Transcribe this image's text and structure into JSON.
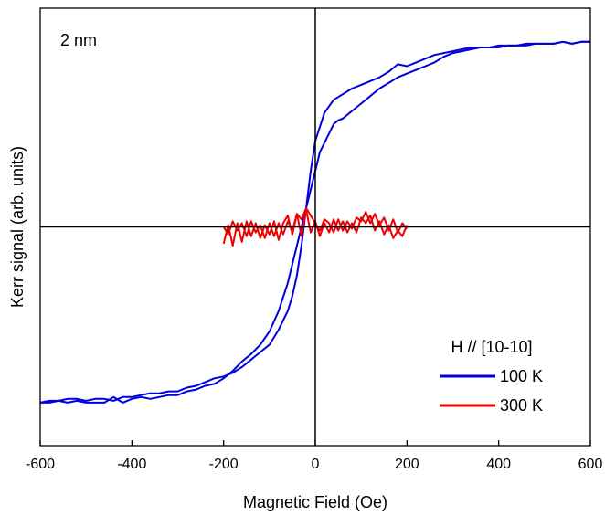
{
  "chart_data": {
    "type": "line",
    "title": "",
    "xlabel": "Magnetic Field (Oe)",
    "ylabel": "Kerr signal (arb. units)",
    "xlim": [
      -600,
      600
    ],
    "ylim": [
      -1.17,
      1.17
    ],
    "x_ticks": [
      "-600",
      "-400",
      "-200",
      "0",
      "200",
      "400",
      "600"
    ],
    "y_ticks_labeled": false,
    "grid": false,
    "zero_lines": true,
    "annotation": "2 nm",
    "legend": {
      "title": "H // [10-10]",
      "placement": "bottom-right"
    },
    "series": [
      {
        "name": "100 K",
        "color": "#0000dd",
        "branches": [
          {
            "x": [
              600,
              580,
              560,
              540,
              520,
              500,
              480,
              460,
              440,
              420,
              400,
              380,
              360,
              340,
              320,
              300,
              280,
              260,
              240,
              220,
              200,
              180,
              160,
              140,
              120,
              100,
              80,
              60,
              40,
              20,
              0,
              -10,
              -20,
              -30,
              -40,
              -50,
              -60,
              -80,
              -100,
              -120,
              -140,
              -160,
              -180,
              -200,
              -220,
              -240,
              -260,
              -280,
              -300,
              -320,
              -340,
              -360,
              -380,
              -400,
              -420,
              -440,
              -460,
              -480,
              -500,
              -520,
              -540,
              -560,
              -580,
              -600
            ],
            "y": [
              0.99,
              0.99,
              0.98,
              0.99,
              0.98,
              0.98,
              0.98,
              0.97,
              0.97,
              0.97,
              0.96,
              0.96,
              0.96,
              0.96,
              0.95,
              0.94,
              0.93,
              0.92,
              0.9,
              0.88,
              0.86,
              0.87,
              0.83,
              0.8,
              0.78,
              0.76,
              0.74,
              0.71,
              0.68,
              0.61,
              0.46,
              0.3,
              0.1,
              -0.1,
              -0.26,
              -0.37,
              -0.45,
              -0.55,
              -0.63,
              -0.67,
              -0.71,
              -0.75,
              -0.78,
              -0.8,
              -0.81,
              -0.83,
              -0.85,
              -0.86,
              -0.88,
              -0.88,
              -0.89,
              -0.89,
              -0.9,
              -0.91,
              -0.91,
              -0.93,
              -0.92,
              -0.92,
              -0.93,
              -0.92,
              -0.92,
              -0.93,
              -0.94,
              -0.94
            ]
          },
          {
            "x": [
              -600,
              -580,
              -560,
              -540,
              -520,
              -500,
              -480,
              -460,
              -440,
              -420,
              -400,
              -380,
              -360,
              -340,
              -320,
              -300,
              -280,
              -260,
              -240,
              -220,
              -200,
              -180,
              -160,
              -140,
              -120,
              -100,
              -80,
              -60,
              -40,
              -20,
              0,
              10,
              20,
              30,
              40,
              50,
              60,
              80,
              100,
              120,
              140,
              160,
              180,
              200,
              220,
              240,
              260,
              280,
              300,
              320,
              340,
              360,
              380,
              400,
              420,
              440,
              460,
              480,
              500,
              520,
              540,
              560,
              580,
              600
            ],
            "y": [
              -0.94,
              -0.93,
              -0.93,
              -0.94,
              -0.93,
              -0.94,
              -0.94,
              -0.94,
              -0.91,
              -0.94,
              -0.92,
              -0.91,
              -0.92,
              -0.91,
              -0.9,
              -0.9,
              -0.88,
              -0.87,
              -0.85,
              -0.84,
              -0.81,
              -0.77,
              -0.72,
              -0.68,
              -0.63,
              -0.56,
              -0.45,
              -0.3,
              -0.1,
              0.1,
              0.3,
              0.4,
              0.45,
              0.5,
              0.55,
              0.57,
              0.58,
              0.62,
              0.66,
              0.7,
              0.74,
              0.77,
              0.8,
              0.82,
              0.84,
              0.86,
              0.88,
              0.91,
              0.93,
              0.94,
              0.95,
              0.96,
              0.96,
              0.97,
              0.97,
              0.97,
              0.98,
              0.98,
              0.98,
              0.98,
              0.99,
              0.98,
              0.99,
              0.99
            ]
          }
        ]
      },
      {
        "name": "300 K",
        "color": "#ee0000",
        "branches": [
          {
            "x": [
              -200,
              -190,
              -180,
              -170,
              -160,
              -150,
              -140,
              -130,
              -120,
              -110,
              -100,
              -90,
              -80,
              -70,
              -60,
              -50,
              -40,
              -30,
              -20,
              -10,
              0,
              10,
              20,
              30,
              40,
              50,
              60,
              70,
              80,
              90,
              100,
              110,
              120,
              130,
              140,
              150,
              160,
              170,
              180,
              190,
              200
            ],
            "y": [
              -0.09,
              0.01,
              -0.1,
              0.02,
              -0.08,
              0.03,
              -0.05,
              0.02,
              -0.06,
              0.01,
              -0.04,
              0.03,
              -0.07,
              0.02,
              0.06,
              -0.04,
              0.07,
              -0.05,
              0.09,
              -0.03,
              0.03,
              -0.05,
              0.02,
              -0.03,
              0.04,
              -0.02,
              0.03,
              -0.03,
              0.02,
              -0.03,
              0.05,
              0.02,
              0.06,
              -0.02,
              0.03,
              -0.04,
              0.01,
              -0.06,
              -0.02,
              -0.05,
              0.01
            ]
          },
          {
            "x": [
              200,
              190,
              180,
              170,
              160,
              150,
              140,
              130,
              120,
              110,
              100,
              90,
              80,
              70,
              60,
              50,
              40,
              30,
              20,
              10,
              0,
              -10,
              -20,
              -30,
              -40,
              -50,
              -60,
              -70,
              -80,
              -90,
              -100,
              -110,
              -120,
              -130,
              -140,
              -150,
              -160,
              -170,
              -180,
              -190,
              -200
            ],
            "y": [
              -0.01,
              0.02,
              -0.03,
              0.04,
              -0.02,
              0.05,
              0.01,
              0.07,
              0.02,
              0.08,
              0.03,
              0.05,
              -0.01,
              0.03,
              -0.02,
              0.04,
              -0.03,
              0.02,
              0.04,
              -0.02,
              0.02,
              0.06,
              0.1,
              0.04,
              0.07,
              -0.02,
              0.03,
              -0.04,
              0.02,
              -0.05,
              0.02,
              -0.06,
              0.01,
              -0.03,
              0.03,
              -0.05,
              0.02,
              -0.02,
              0.03,
              -0.04,
              0.0
            ]
          }
        ]
      }
    ]
  }
}
